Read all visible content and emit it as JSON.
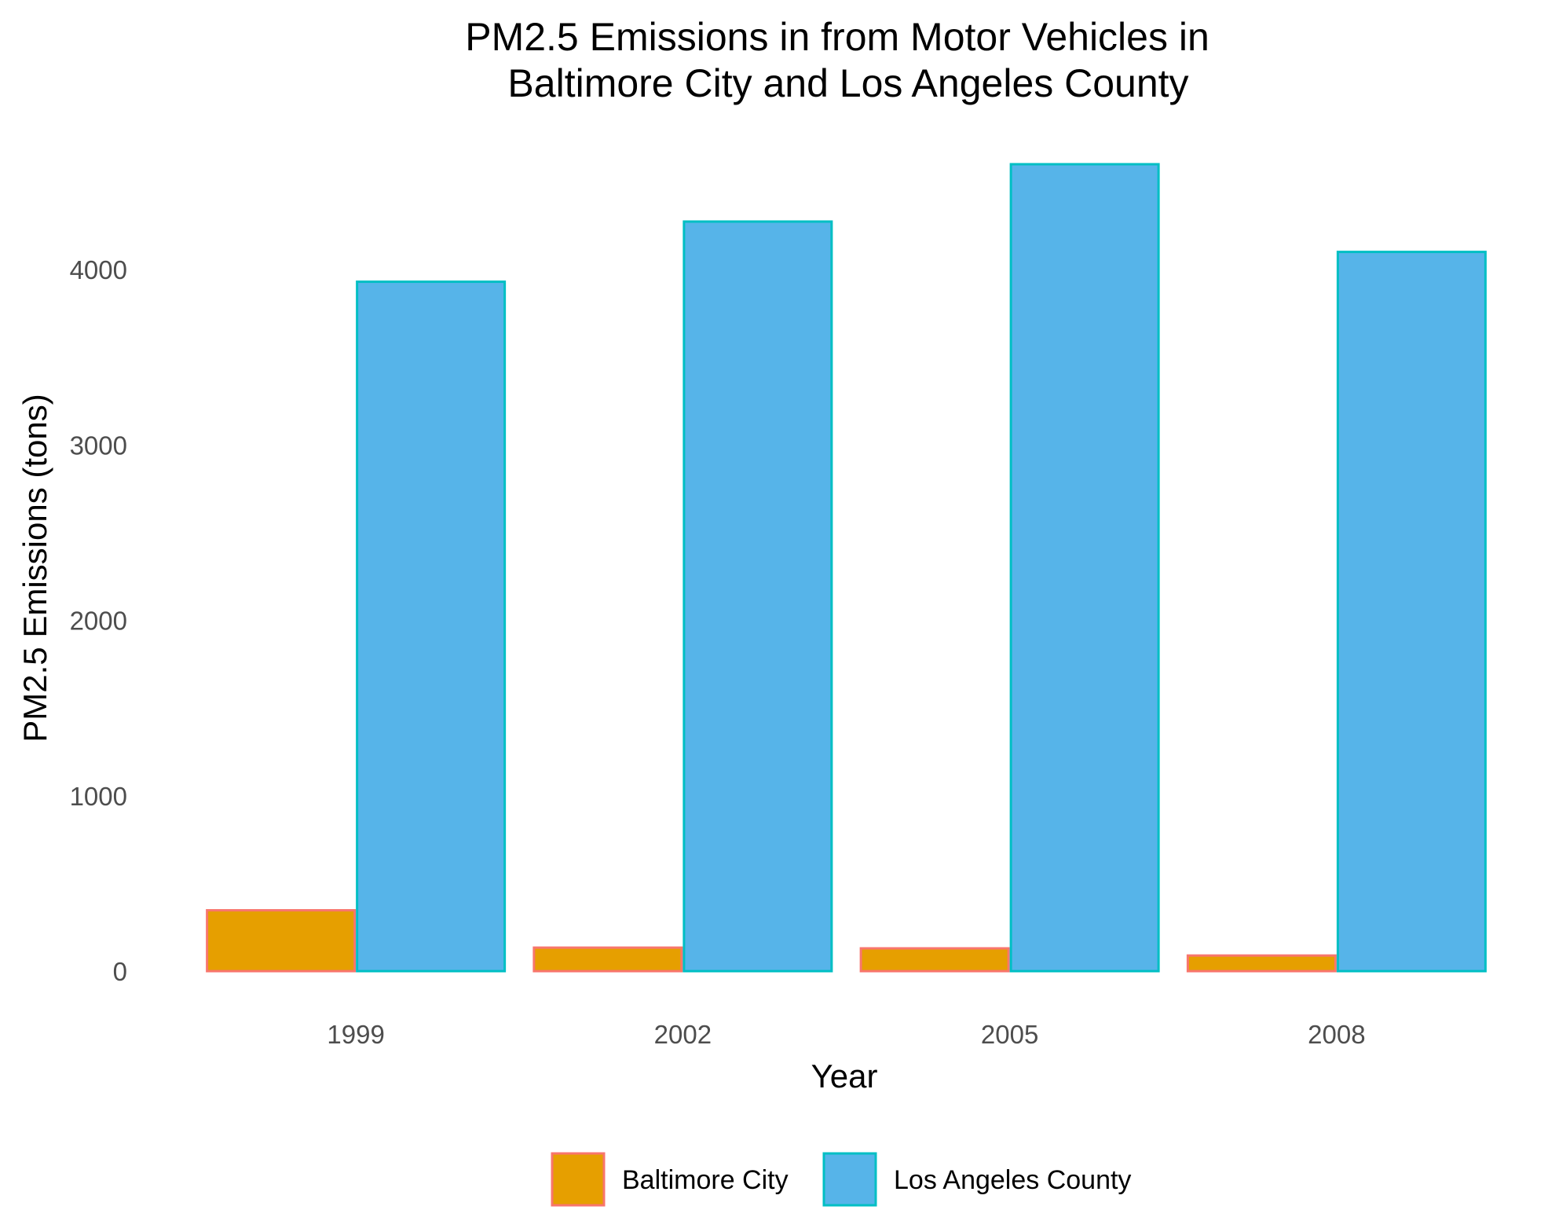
{
  "chart_data": {
    "type": "bar",
    "title": "PM2.5 Emissions in from Motor Vehicles in\nBaltimore City and Los Angeles County",
    "xlabel": "Year",
    "ylabel": "PM2.5 Emissions (tons)",
    "categories": [
      "1999",
      "2002",
      "2005",
      "2008"
    ],
    "series": [
      {
        "name": "Baltimore City",
        "values": [
          347,
          134,
          130,
          89
        ],
        "fill": "#E69F00",
        "stroke": "#F8766D"
      },
      {
        "name": "Los Angeles County",
        "values": [
          3931,
          4274,
          4601,
          4101
        ],
        "fill": "#56B4E9",
        "stroke": "#00BFC4"
      }
    ],
    "y_ticks": [
      "0",
      "1000",
      "2000",
      "3000",
      "4000"
    ],
    "ylim": [
      0,
      4601
    ],
    "grid": false,
    "legend_position": "bottom"
  }
}
